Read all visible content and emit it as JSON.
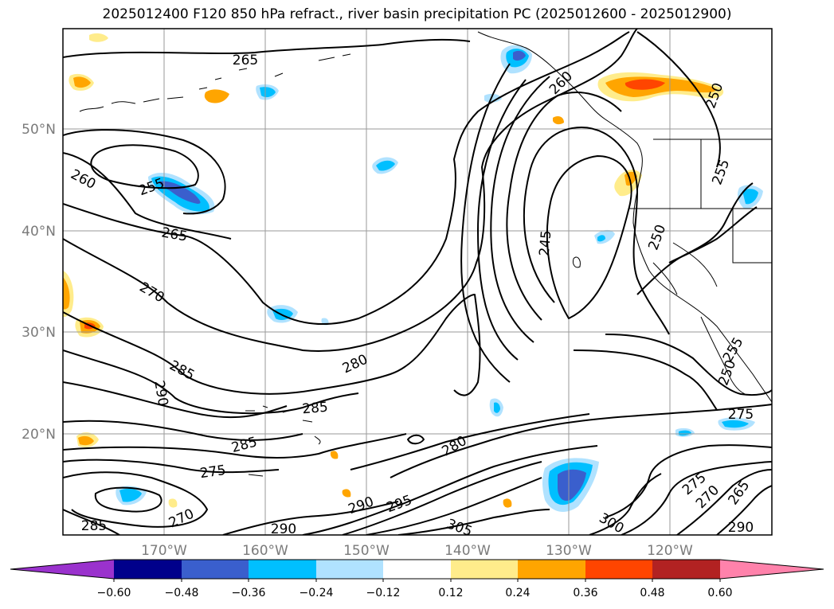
{
  "title": "2025012400 F120 850 hPa refract., river basin precipitation PC (2025012600 - 2025012900)",
  "map": {
    "lat_labels": [
      "50°N",
      "40°N",
      "30°N",
      "20°N"
    ],
    "lon_labels": [
      "170°W",
      "160°W",
      "150°W",
      "140°W",
      "130°W",
      "120°W"
    ],
    "contour_labels": [
      "265",
      "260",
      "255",
      "265",
      "270",
      "285",
      "290",
      "280",
      "285",
      "285",
      "275",
      "270",
      "285",
      "290",
      "290",
      "295",
      "305",
      "280",
      "300",
      "275",
      "270",
      "265",
      "290",
      "275",
      "245",
      "250",
      "255",
      "250",
      "255",
      "250",
      "260"
    ]
  },
  "colorbar": {
    "ticks": [
      "−0.60",
      "−0.48",
      "−0.36",
      "−0.24",
      "−0.12",
      "0.12",
      "0.24",
      "0.36",
      "0.48",
      "0.60"
    ],
    "colors": [
      "#9a32cd",
      "#00008b",
      "#3a5fcd",
      "#00bfff",
      "#b0e2ff",
      "#ffffff",
      "#ffec8b",
      "#ffa500",
      "#ff4500",
      "#b22222",
      "#ff82ab"
    ]
  }
}
